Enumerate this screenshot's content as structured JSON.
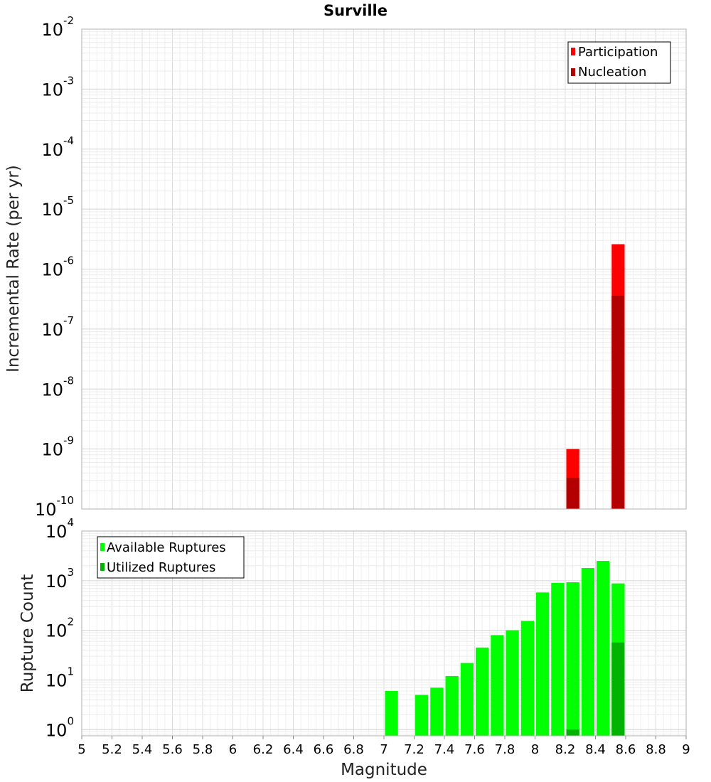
{
  "chart_data": [
    {
      "type": "bar",
      "title": "Surville",
      "xlabel": "Magnitude",
      "ylabel": "Incremental Rate (per yr)",
      "xlim": [
        5,
        9
      ],
      "ylim": [
        1e-10,
        0.01
      ],
      "y_scale": "log",
      "x_ticks": [
        "5",
        "5.2",
        "5.4",
        "5.6",
        "5.8",
        "6",
        "6.2",
        "6.4",
        "6.6",
        "6.8",
        "7",
        "7.2",
        "7.4",
        "7.6",
        "7.8",
        "8",
        "8.2",
        "8.4",
        "8.6",
        "8.8",
        "9"
      ],
      "y_tick_exponents": [
        -10,
        -9,
        -8,
        -7,
        -6,
        -5,
        -4,
        -3,
        -2
      ],
      "grid": true,
      "legend_position": "top-right",
      "bin_width": 0.1,
      "series": [
        {
          "name": "Participation",
          "color": "#ff0000",
          "x": [
            8.25,
            8.55
          ],
          "values": [
            1e-09,
            2.6e-06
          ]
        },
        {
          "name": "Nucleation",
          "color": "#b30000",
          "x": [
            8.25,
            8.55
          ],
          "values": [
            3.3e-10,
            3.6e-07
          ]
        }
      ]
    },
    {
      "type": "bar",
      "ylabel": "Rupture Count",
      "xlabel": "Magnitude",
      "xlim": [
        5,
        9
      ],
      "ylim": [
        0.75,
        10000
      ],
      "y_scale": "log",
      "x_ticks": [
        "5",
        "5.2",
        "5.4",
        "5.6",
        "5.8",
        "6",
        "6.2",
        "6.4",
        "6.6",
        "6.8",
        "7",
        "7.2",
        "7.4",
        "7.6",
        "7.8",
        "8",
        "8.2",
        "8.4",
        "8.6",
        "8.8",
        "9"
      ],
      "y_tick_exponents": [
        0,
        1,
        2,
        3,
        4
      ],
      "grid": true,
      "legend_position": "top-left",
      "bin_width": 0.1,
      "series": [
        {
          "name": "Available Ruptures",
          "color": "#00ff00",
          "x": [
            7.05,
            7.25,
            7.35,
            7.45,
            7.55,
            7.65,
            7.75,
            7.85,
            7.95,
            8.05,
            8.15,
            8.25,
            8.35,
            8.45,
            8.55
          ],
          "values": [
            6,
            5,
            7,
            12,
            22,
            45,
            80,
            100,
            155,
            580,
            900,
            930,
            1800,
            2500,
            880
          ]
        },
        {
          "name": "Utilized Ruptures",
          "color": "#00b300",
          "x": [
            8.25,
            8.55
          ],
          "values": [
            1,
            57
          ]
        }
      ]
    }
  ]
}
